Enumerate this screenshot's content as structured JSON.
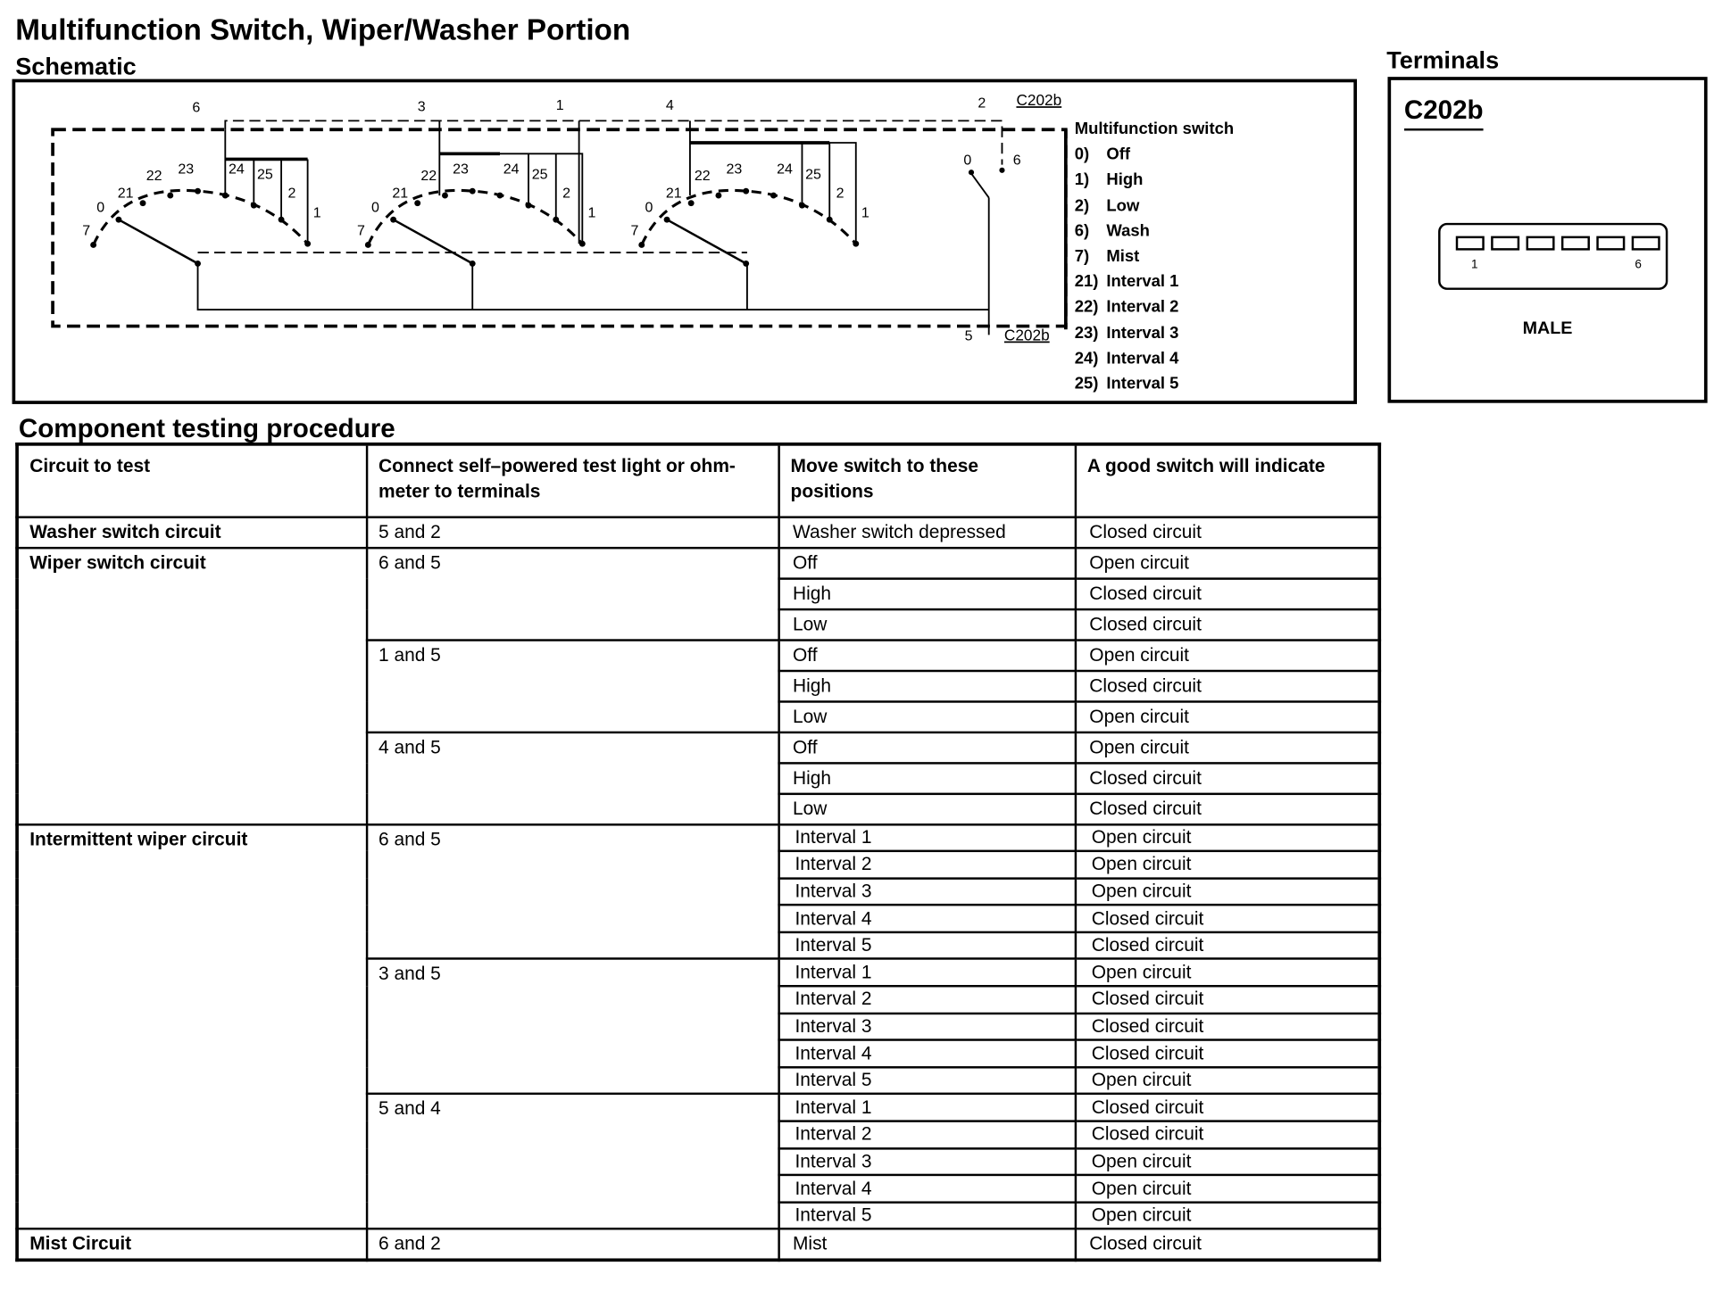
{
  "title": "Multifunction Switch, Wiper/Washer Portion",
  "schematic": {
    "heading": "Schematic",
    "connector_top": "C202b",
    "connector_bottom": "C202b",
    "pins_top": [
      "6",
      "3",
      "1",
      "4",
      "2"
    ],
    "pin_bottom": "5",
    "wash_labels": [
      "0",
      "6"
    ],
    "switch_labels": [
      "7",
      "0",
      "21",
      "22",
      "23",
      "24",
      "25",
      "2",
      "1"
    ],
    "legend_title": "Multifunction switch",
    "legend": [
      {
        "n": "0)",
        "t": "Off"
      },
      {
        "n": "1)",
        "t": "High"
      },
      {
        "n": "2)",
        "t": "Low"
      },
      {
        "n": "6)",
        "t": "Wash"
      },
      {
        "n": "7)",
        "t": "Mist"
      },
      {
        "n": "21)",
        "t": "Interval 1"
      },
      {
        "n": "22)",
        "t": "Interval 2"
      },
      {
        "n": "23)",
        "t": "Interval 3"
      },
      {
        "n": "24)",
        "t": "Interval 4"
      },
      {
        "n": "25)",
        "t": "Interval 5"
      }
    ]
  },
  "terminals": {
    "heading": "Terminals",
    "connector": "C202b",
    "pin_first": "1",
    "pin_last": "6",
    "gender": "MALE"
  },
  "procedure": {
    "heading": "Component testing procedure",
    "columns": [
      "Circuit to test",
      "Connect self–powered test light or ohm-meter to terminals",
      "Move switch to these positions",
      "A good switch will indicate"
    ],
    "sections": [
      {
        "circuit": "Washer switch circuit",
        "groups": [
          {
            "terminals": "5 and 2",
            "rows": [
              [
                "Washer switch depressed",
                "Closed circuit"
              ]
            ]
          }
        ]
      },
      {
        "circuit": "Wiper switch circuit",
        "groups": [
          {
            "terminals": "6 and 5",
            "rows": [
              [
                "Off",
                "Open circuit"
              ],
              [
                "High",
                "Closed circuit"
              ],
              [
                "Low",
                "Closed circuit"
              ]
            ]
          },
          {
            "terminals": "1 and 5",
            "rows": [
              [
                "Off",
                "Open circuit"
              ],
              [
                "High",
                "Closed circuit"
              ],
              [
                "Low",
                "Open circuit"
              ]
            ]
          },
          {
            "terminals": "4 and 5",
            "rows": [
              [
                "Off",
                "Open circuit"
              ],
              [
                "High",
                "Closed circuit"
              ],
              [
                "Low",
                "Closed circuit"
              ]
            ]
          }
        ]
      },
      {
        "circuit": "Intermittent wiper circuit",
        "small": true,
        "groups": [
          {
            "terminals": "6 and 5",
            "rows": [
              [
                "Interval 1",
                "Open circuit"
              ],
              [
                "Interval 2",
                "Open circuit"
              ],
              [
                "Interval 3",
                "Open circuit"
              ],
              [
                "Interval 4",
                "Closed circuit"
              ],
              [
                "Interval 5",
                "Closed circuit"
              ]
            ]
          },
          {
            "terminals": "3 and 5",
            "rows": [
              [
                "Interval 1",
                "Open circuit"
              ],
              [
                "Interval 2",
                "Closed circuit"
              ],
              [
                "Interval 3",
                "Closed circuit"
              ],
              [
                "Interval 4",
                "Closed circuit"
              ],
              [
                "Interval 5",
                "Open circuit"
              ]
            ]
          },
          {
            "terminals": "5 and 4",
            "rows": [
              [
                "Interval 1",
                "Closed circuit"
              ],
              [
                "Interval 2",
                "Closed circuit"
              ],
              [
                "Interval 3",
                "Open circuit"
              ],
              [
                "Interval 4",
                "Open circuit"
              ],
              [
                "Interval 5",
                "Open circuit"
              ]
            ]
          }
        ]
      },
      {
        "circuit": "Mist Circuit",
        "groups": [
          {
            "terminals": "6 and 2",
            "rows": [
              [
                "Mist",
                "Closed circuit"
              ]
            ]
          }
        ]
      }
    ]
  }
}
